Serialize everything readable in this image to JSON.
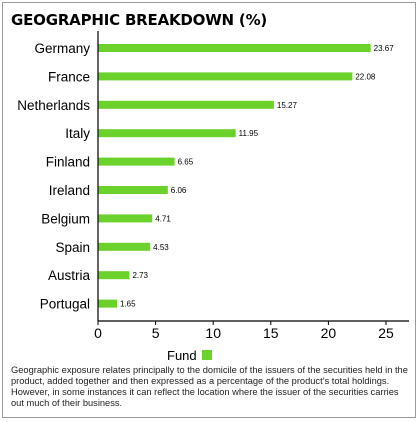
{
  "title": "GEOGRAPHIC BREAKDOWN (%)",
  "colors": {
    "bar": "#6bd12b",
    "axis": "#000000"
  },
  "chart_data": {
    "type": "bar",
    "orientation": "horizontal",
    "categories": [
      "Germany",
      "France",
      "Netherlands",
      "Italy",
      "Finland",
      "Ireland",
      "Belgium",
      "Spain",
      "Austria",
      "Portugal"
    ],
    "series": [
      {
        "name": "Fund",
        "values": [
          23.67,
          22.08,
          15.27,
          11.95,
          6.65,
          6.06,
          4.71,
          4.53,
          2.73,
          1.65
        ]
      }
    ],
    "data_labels": [
      "23.67",
      "22.08",
      "15.27",
      "11.95",
      "6.65",
      "6.06",
      "4.71",
      "4.53",
      "2.73",
      "1.65"
    ],
    "xlim": [
      0,
      27
    ],
    "xticks": [
      0,
      5,
      10,
      15,
      20,
      25
    ],
    "xtick_labels": [
      "0",
      "5",
      "10",
      "15",
      "20",
      "25"
    ],
    "grid": false,
    "legend": "bottom-center"
  },
  "footnote": "Geographic exposure relates principally to the domicile of the issuers of the securities held in the product, added together and then expressed as a percentage of the product’s total holdings. However, in some instances it can reflect the location where the issuer of the securities carries out much of their business."
}
